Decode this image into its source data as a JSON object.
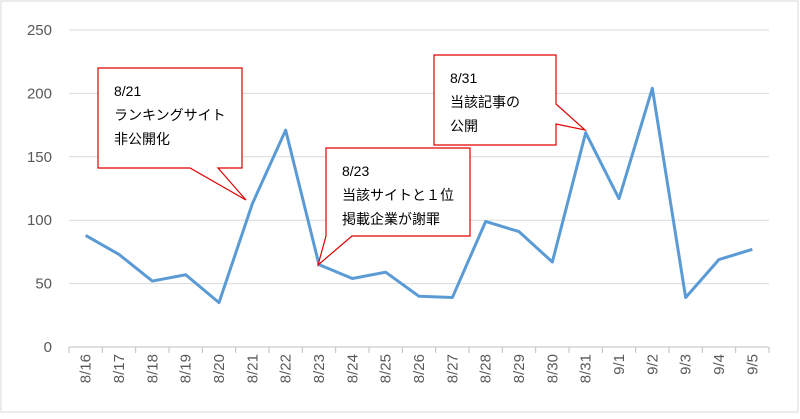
{
  "chart_data": {
    "type": "line",
    "categories": [
      "8/16",
      "8/17",
      "8/18",
      "8/19",
      "8/20",
      "8/21",
      "8/22",
      "8/23",
      "8/24",
      "8/25",
      "8/26",
      "8/27",
      "8/28",
      "8/29",
      "8/30",
      "8/31",
      "9/1",
      "9/2",
      "9/3",
      "9/4",
      "9/5"
    ],
    "series": [
      {
        "color": "#5b9bd5",
        "values": [
          88,
          73,
          52,
          57,
          35,
          113,
          171,
          65,
          54,
          59,
          40,
          39,
          99,
          91,
          67,
          169,
          117,
          204,
          39,
          69,
          77
        ]
      }
    ],
    "ylim": [
      0,
      250
    ],
    "yticks": [
      0,
      50,
      100,
      150,
      200,
      250
    ],
    "grid": true,
    "annotations": [
      {
        "category": "8/21",
        "lines": [
          "8/21",
          "ランキングサイト",
          "非公開化"
        ]
      },
      {
        "category": "8/23",
        "lines": [
          "8/23",
          "当該サイトと１位",
          "掲載企業が謝罪"
        ]
      },
      {
        "category": "8/31",
        "lines": [
          "8/31",
          "当該記事の",
          "公開"
        ]
      }
    ]
  }
}
